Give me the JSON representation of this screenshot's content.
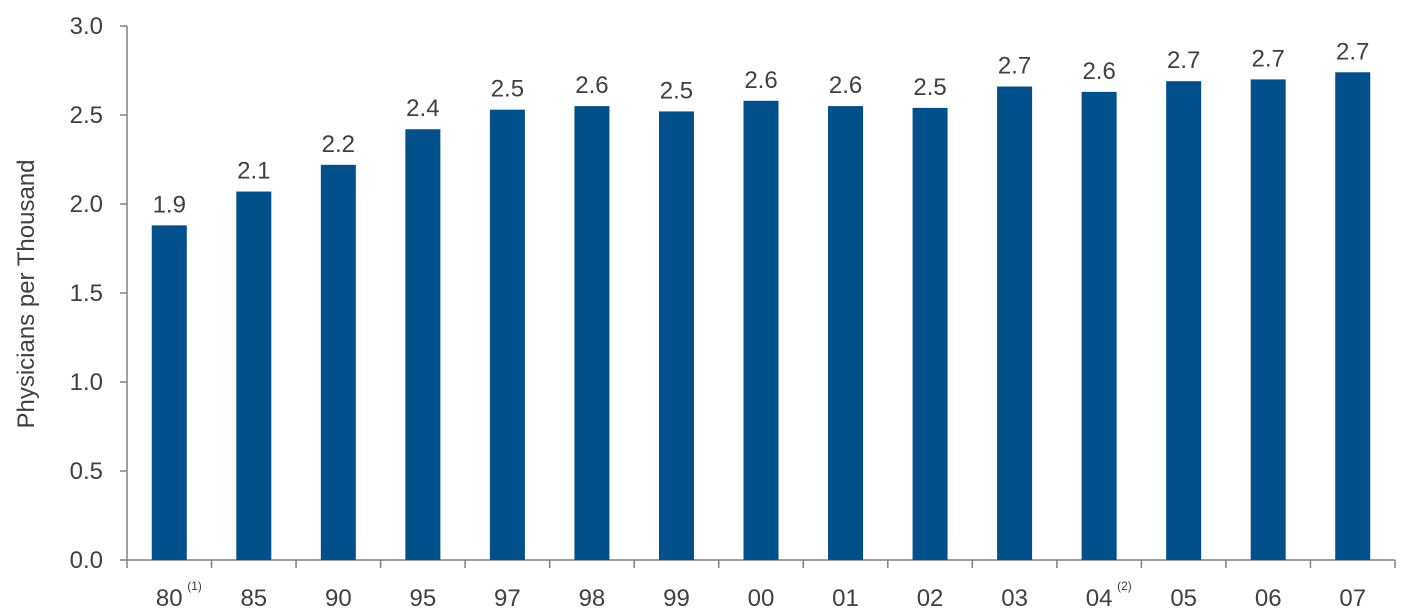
{
  "chart_data": {
    "type": "bar",
    "title": "",
    "xlabel": "",
    "ylabel": "Physicians per Thousand",
    "categories": [
      "80",
      "85",
      "90",
      "95",
      "97",
      "98",
      "99",
      "00",
      "01",
      "02",
      "03",
      "04",
      "05",
      "06",
      "07"
    ],
    "category_notes": [
      "(1)",
      "",
      "",
      "",
      "",
      "",
      "",
      "",
      "",
      "",
      "",
      "(2)",
      "",
      "",
      ""
    ],
    "values": [
      1.88,
      2.07,
      2.22,
      2.42,
      2.53,
      2.55,
      2.52,
      2.58,
      2.55,
      2.54,
      2.66,
      2.63,
      2.69,
      2.7,
      2.74
    ],
    "data_labels": [
      "1.9",
      "2.1",
      "2.2",
      "2.4",
      "2.5",
      "2.6",
      "2.5",
      "2.6",
      "2.6",
      "2.5",
      "2.7",
      "2.6",
      "2.7",
      "2.7",
      "2.7"
    ],
    "ylim": [
      0,
      3.0
    ],
    "yticks": [
      "0.0",
      "0.5",
      "1.0",
      "1.5",
      "2.0",
      "2.5",
      "3.0"
    ],
    "bar_color": "#00508C",
    "grid": false,
    "legend": "none"
  }
}
